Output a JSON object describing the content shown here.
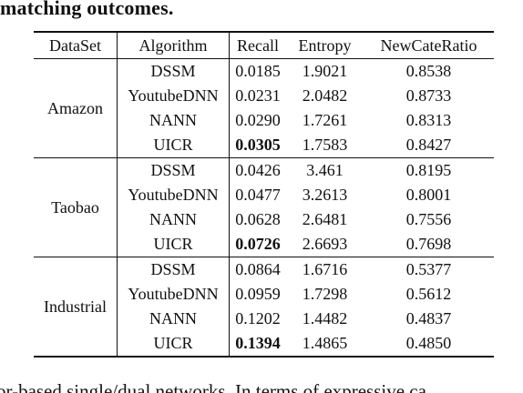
{
  "caption_fragment": "matching outcomes.",
  "table": {
    "headers": {
      "dataset": "DataSet",
      "algorithm": "Algorithm",
      "recall": "Recall",
      "entropy": "Entropy",
      "newcate": "NewCateRatio"
    },
    "groups": [
      {
        "dataset": "Amazon",
        "rows": [
          {
            "algorithm": "DSSM",
            "recall": "0.0185",
            "entropy": "1.9021",
            "newcate": "0.8538"
          },
          {
            "algorithm": "YoutubeDNN",
            "recall": "0.0231",
            "entropy": "2.0482",
            "newcate": "0.8733"
          },
          {
            "algorithm": "NANN",
            "recall": "0.0290",
            "entropy": "1.7261",
            "newcate": "0.8313"
          },
          {
            "algorithm": "UICR",
            "recall": "0.0305",
            "entropy": "1.7583",
            "newcate": "0.8427"
          }
        ]
      },
      {
        "dataset": "Taobao",
        "rows": [
          {
            "algorithm": "DSSM",
            "recall": "0.0426",
            "entropy": "3.461",
            "newcate": "0.8195"
          },
          {
            "algorithm": "YoutubeDNN",
            "recall": "0.0477",
            "entropy": "3.2613",
            "newcate": "0.8001"
          },
          {
            "algorithm": "NANN",
            "recall": "0.0628",
            "entropy": "2.6481",
            "newcate": "0.7556"
          },
          {
            "algorithm": "UICR",
            "recall": "0.0726",
            "entropy": "2.6693",
            "newcate": "0.7698"
          }
        ]
      },
      {
        "dataset": "Industrial",
        "rows": [
          {
            "algorithm": "DSSM",
            "recall": "0.0864",
            "entropy": "1.6716",
            "newcate": "0.5377"
          },
          {
            "algorithm": "YoutubeDNN",
            "recall": "0.0959",
            "entropy": "1.7298",
            "newcate": "0.5612"
          },
          {
            "algorithm": "NANN",
            "recall": "0.1202",
            "entropy": "1.4482",
            "newcate": "0.4837"
          },
          {
            "algorithm": "UICR",
            "recall": "0.1394",
            "entropy": "1.4865",
            "newcate": "0.4850"
          }
        ]
      }
    ],
    "bold_recall_rows": [
      "UICR"
    ]
  },
  "body_fragment": "or-based single/dual networks. In terms of expressive ca"
}
